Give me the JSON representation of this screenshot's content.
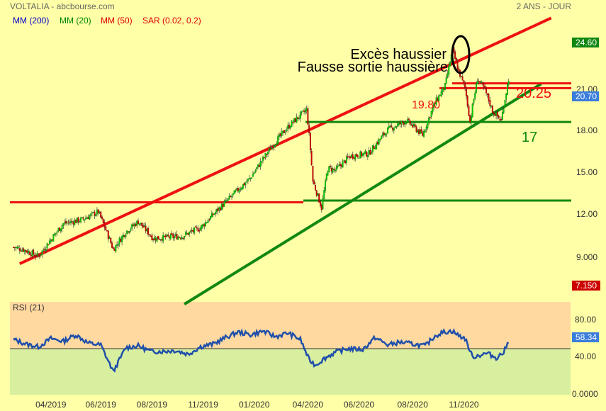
{
  "header": {
    "title": "VOLTALIA - abcbourse.com",
    "period": "2 ANS - JOUR",
    "legend": [
      {
        "label": "MM (200)",
        "color": "#0000CC"
      },
      {
        "label": "MM (20)",
        "color": "#008800"
      },
      {
        "label": "MM (50)",
        "color": "#DD0000"
      },
      {
        "label": "SAR (0.02, 0.2)",
        "color": "#DD0000"
      }
    ]
  },
  "annotations": {
    "exces": "Excès haussier",
    "fausse": "Fausse sortie haussière",
    "r1": "20.25",
    "r2": "19.80",
    "s1": "17"
  },
  "rsi_panel": {
    "label": "RSI (21)"
  },
  "colors": {
    "background": "#FFFFA8",
    "up": "#00CC00",
    "down": "#CC0000",
    "trend_red": "#EE1111",
    "trend_green": "#118811",
    "rsi_line": "#1F4FAA",
    "rsi_over": "#FFD9A0",
    "rsi_under": "#D8EFA0"
  },
  "chart_data": [
    {
      "type": "line",
      "subtype": "candlestick",
      "yscale": "log",
      "y_ticks": [
        "9.000",
        "12.00",
        "15.00",
        "18.00",
        "21.00",
        "24.60"
      ],
      "ylim": [
        7.15,
        27.5
      ],
      "price_labels": {
        "high": "24.60",
        "last": "20.70",
        "low": "7.150"
      },
      "x_ticks": [
        "04/2019",
        "06/2019",
        "08/2019",
        "11/2019",
        "01/2020",
        "04/2020",
        "06/2020",
        "08/2020",
        "11/2020"
      ],
      "x_tick_index": [
        30,
        70,
        111,
        152,
        193,
        236,
        277,
        320,
        361
      ],
      "n_sessions": 375,
      "close_anchors": [
        [
          0,
          9.4
        ],
        [
          8,
          9.3
        ],
        [
          20,
          9.0
        ],
        [
          28,
          9.6
        ],
        [
          40,
          10.5
        ],
        [
          55,
          10.7
        ],
        [
          68,
          11.1
        ],
        [
          80,
          9.3
        ],
        [
          90,
          10.1
        ],
        [
          100,
          10.6
        ],
        [
          112,
          9.8
        ],
        [
          135,
          9.9
        ],
        [
          150,
          10.3
        ],
        [
          170,
          11.6
        ],
        [
          190,
          13.0
        ],
        [
          210,
          15.4
        ],
        [
          222,
          16.7
        ],
        [
          235,
          17.9
        ],
        [
          240,
          12.8
        ],
        [
          247,
          11.3
        ],
        [
          252,
          13.6
        ],
        [
          258,
          13.5
        ],
        [
          270,
          14.4
        ],
        [
          285,
          14.6
        ],
        [
          300,
          16.3
        ],
        [
          315,
          17.0
        ],
        [
          328,
          15.9
        ],
        [
          338,
          18.5
        ],
        [
          346,
          20.0
        ],
        [
          352,
          23.6
        ],
        [
          357,
          21.4
        ],
        [
          362,
          19.8
        ],
        [
          366,
          16.9
        ],
        [
          372,
          20.7
        ],
        [
          378,
          19.6
        ],
        [
          384,
          17.8
        ],
        [
          391,
          17.0
        ],
        [
          397,
          20.7
        ]
      ],
      "support_resistance": [
        {
          "label": "19.80",
          "value": 19.8,
          "color": "#EE1111"
        },
        {
          "label": "20.25",
          "value": 20.25,
          "color": "#EE1111"
        },
        {
          "label": "17",
          "value": 16.9,
          "color": "#118811"
        },
        {
          "value": 11.6,
          "color": "#EE1111"
        },
        {
          "value": 11.7,
          "color": "#118811"
        }
      ],
      "trendlines": [
        {
          "color": "#EE1111",
          "from": [
            5,
            8.7
          ],
          "to": [
            431,
            27.5
          ]
        },
        {
          "color": "#118811",
          "from": [
            137,
            7.2
          ],
          "to": [
            423,
            20.2
          ]
        }
      ]
    },
    {
      "type": "line",
      "name": "RSI (21)",
      "ylim": [
        0,
        100
      ],
      "y_ticks": [
        "80.00",
        "40.00",
        "0.0000"
      ],
      "reference": 58.34,
      "last_label": "58.34",
      "midline": 50,
      "values_anchors": [
        [
          0,
          60
        ],
        [
          10,
          55
        ],
        [
          20,
          52
        ],
        [
          30,
          61
        ],
        [
          40,
          58
        ],
        [
          50,
          65
        ],
        [
          60,
          56
        ],
        [
          70,
          54
        ],
        [
          80,
          25
        ],
        [
          90,
          51
        ],
        [
          100,
          53
        ],
        [
          110,
          47
        ],
        [
          120,
          47
        ],
        [
          130,
          48
        ],
        [
          140,
          44
        ],
        [
          150,
          52
        ],
        [
          160,
          55
        ],
        [
          170,
          62
        ],
        [
          180,
          68
        ],
        [
          190,
          65
        ],
        [
          200,
          69
        ],
        [
          210,
          63
        ],
        [
          220,
          67
        ],
        [
          230,
          60
        ],
        [
          237,
          38
        ],
        [
          242,
          32
        ],
        [
          250,
          40
        ],
        [
          258,
          46
        ],
        [
          268,
          50
        ],
        [
          280,
          49
        ],
        [
          290,
          62
        ],
        [
          300,
          54
        ],
        [
          310,
          57
        ],
        [
          320,
          55
        ],
        [
          330,
          53
        ],
        [
          338,
          64
        ],
        [
          345,
          68
        ],
        [
          352,
          69
        ],
        [
          357,
          64
        ],
        [
          362,
          61
        ],
        [
          368,
          41
        ],
        [
          374,
          43
        ],
        [
          380,
          45
        ],
        [
          387,
          40
        ],
        [
          393,
          46
        ],
        [
          397,
          58
        ]
      ]
    }
  ]
}
